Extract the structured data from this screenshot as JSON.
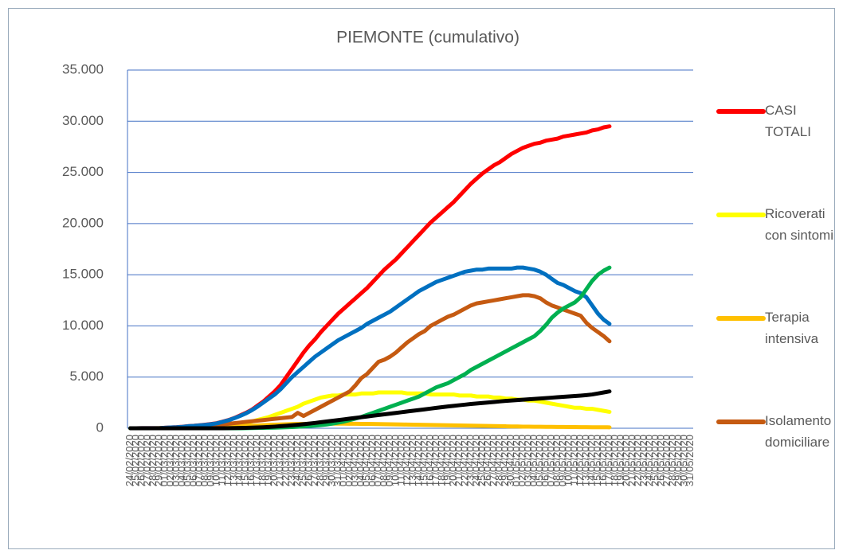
{
  "chart_data": {
    "type": "line",
    "title": "PIEMONTE (cumulativo)",
    "categories": [
      "24/02/2020",
      "25/02/2020",
      "26/02/2020",
      "27/02/2020",
      "28/02/2020",
      "29/02/2020",
      "01/03/2020",
      "02/03/2020",
      "03/03/2020",
      "04/03/2020",
      "05/03/2020",
      "06/03/2020",
      "07/03/2020",
      "08/03/2020",
      "09/03/2020",
      "10/03/2020",
      "11/03/2020",
      "12/03/2020",
      "13/03/2020",
      "14/03/2020",
      "15/03/2020",
      "16/03/2020",
      "17/03/2020",
      "18/03/2020",
      "19/03/2020",
      "20/03/2020",
      "21/03/2020",
      "22/03/2020",
      "23/03/2020",
      "24/03/2020",
      "25/03/2020",
      "26/03/2020",
      "27/03/2020",
      "28/03/2020",
      "29/03/2020",
      "30/03/2020",
      "31/03/2020",
      "01/04/2020",
      "02/04/2020",
      "03/04/2020",
      "04/04/2020",
      "05/04/2020",
      "06/04/2020",
      "07/04/2020",
      "08/04/2020",
      "09/04/2020",
      "10/04/2020",
      "11/04/2020",
      "12/04/2020",
      "13/04/2020",
      "14/04/2020",
      "15/04/2020",
      "16/04/2020",
      "17/04/2020",
      "18/04/2020",
      "19/04/2020",
      "20/04/2020",
      "21/04/2020",
      "22/04/2020",
      "23/04/2020",
      "24/04/2020",
      "25/04/2020",
      "26/04/2020",
      "27/04/2020",
      "28/04/2020",
      "29/04/2020",
      "30/04/2020",
      "01/05/2020",
      "02/05/2020",
      "03/05/2020",
      "04/05/2020",
      "05/05/2020",
      "06/05/2020",
      "07/05/2020",
      "08/05/2020",
      "09/05/2020",
      "10/05/2020",
      "11/05/2020",
      "12/05/2020",
      "13/05/2020",
      "14/05/2020",
      "15/05/2020",
      "16/05/2020",
      "17/05/2020",
      "18/05/2020",
      "19/05/2020",
      "20/05/2020",
      "21/05/2020",
      "22/05/2020",
      "23/05/2020",
      "24/05/2020",
      "25/05/2020",
      "26/05/2020",
      "27/05/2020",
      "28/05/2020",
      "29/05/2020",
      "30/05/2020",
      "31/05/2020"
    ],
    "series": [
      {
        "name": "CASI TOTALI",
        "color": "#ff0000",
        "values": [
          3,
          3,
          6,
          6,
          11,
          11,
          49,
          82,
          105,
          143,
          207,
          243,
          294,
          350,
          420,
          500,
          650,
          800,
          1000,
          1250,
          1500,
          1800,
          2200,
          2600,
          3100,
          3600,
          4200,
          5000,
          5800,
          6600,
          7400,
          8100,
          8700,
          9400,
          10000,
          10600,
          11200,
          11700,
          12200,
          12700,
          13200,
          13700,
          14300,
          14900,
          15500,
          16000,
          16500,
          17100,
          17700,
          18300,
          18900,
          19500,
          20100,
          20600,
          21100,
          21600,
          22100,
          22700,
          23300,
          23900,
          24400,
          24900,
          25300,
          25700,
          26000,
          26400,
          26800,
          27100,
          27400,
          27600,
          27800,
          27900,
          28100,
          28200,
          28300,
          28500,
          28600,
          28700,
          28800,
          28900,
          29100,
          29200,
          29400,
          29500,
          null,
          null,
          null,
          null,
          null,
          null,
          null,
          null,
          null,
          null,
          null,
          null,
          null,
          null
        ]
      },
      {
        "name": "Ricoverati con sintomi",
        "color": "#ffff00",
        "values": [
          0,
          0,
          1,
          2,
          4,
          7,
          10,
          15,
          20,
          30,
          40,
          50,
          70,
          90,
          120,
          150,
          200,
          250,
          330,
          420,
          520,
          650,
          800,
          950,
          1100,
          1300,
          1500,
          1700,
          1900,
          2100,
          2400,
          2600,
          2800,
          3000,
          3100,
          3200,
          3200,
          3300,
          3300,
          3300,
          3400,
          3400,
          3400,
          3500,
          3500,
          3500,
          3500,
          3500,
          3400,
          3400,
          3400,
          3400,
          3300,
          3300,
          3300,
          3300,
          3300,
          3200,
          3200,
          3200,
          3100,
          3100,
          3100,
          3000,
          3000,
          2900,
          2900,
          2800,
          2800,
          2700,
          2700,
          2600,
          2500,
          2400,
          2300,
          2200,
          2100,
          2000,
          2000,
          1900,
          1900,
          1800,
          1700,
          1600,
          null,
          null,
          null,
          null,
          null,
          null,
          null,
          null,
          null,
          null,
          null,
          null,
          null,
          null
        ]
      },
      {
        "name": "Terapia intensiva",
        "color": "#ffc000",
        "values": [
          0,
          0,
          0,
          1,
          2,
          3,
          5,
          7,
          10,
          15,
          20,
          25,
          35,
          45,
          60,
          80,
          100,
          120,
          150,
          180,
          210,
          240,
          270,
          300,
          330,
          350,
          370,
          390,
          410,
          420,
          430,
          440,
          450,
          450,
          450,
          450,
          450,
          450,
          440,
          440,
          430,
          430,
          420,
          410,
          400,
          390,
          380,
          370,
          360,
          350,
          340,
          330,
          320,
          310,
          300,
          290,
          280,
          270,
          260,
          250,
          240,
          230,
          220,
          210,
          200,
          190,
          180,
          170,
          160,
          160,
          150,
          150,
          140,
          140,
          130,
          130,
          120,
          120,
          110,
          110,
          100,
          100,
          100,
          90,
          null,
          null,
          null,
          null,
          null,
          null,
          null,
          null,
          null,
          null,
          null,
          null,
          null,
          null
        ]
      },
      {
        "name": "Isolamento domiciliare",
        "color": "#c55a11",
        "values": [
          0,
          0,
          2,
          2,
          5,
          5,
          30,
          60,
          80,
          110,
          160,
          190,
          220,
          250,
          290,
          330,
          380,
          440,
          500,
          560,
          620,
          680,
          740,
          800,
          860,
          920,
          980,
          1040,
          1100,
          1500,
          1200,
          1500,
          1800,
          2100,
          2400,
          2700,
          3000,
          3300,
          3600,
          4200,
          4900,
          5300,
          5900,
          6500,
          6700,
          7000,
          7400,
          7900,
          8400,
          8800,
          9200,
          9500,
          10000,
          10300,
          10600,
          10900,
          11100,
          11400,
          11700,
          12000,
          12200,
          12300,
          12400,
          12500,
          12600,
          12700,
          12800,
          12900,
          13000,
          13000,
          12900,
          12700,
          12300,
          12000,
          11800,
          11600,
          11400,
          11200,
          11000,
          10300,
          9800,
          9400,
          9000,
          8500,
          null,
          null,
          null,
          null,
          null,
          null,
          null,
          null,
          null,
          null,
          null,
          null,
          null,
          null
        ]
      },
      {
        "color": "#0070c0",
        "values": [
          3,
          3,
          6,
          6,
          11,
          11,
          49,
          80,
          100,
          140,
          200,
          230,
          280,
          330,
          400,
          480,
          630,
          780,
          980,
          1200,
          1450,
          1750,
          2100,
          2500,
          2900,
          3300,
          3800,
          4400,
          5000,
          5500,
          6000,
          6500,
          7000,
          7400,
          7800,
          8200,
          8600,
          8900,
          9200,
          9500,
          9800,
          10200,
          10500,
          10800,
          11100,
          11400,
          11800,
          12200,
          12600,
          13000,
          13400,
          13700,
          14000,
          14300,
          14500,
          14700,
          14900,
          15100,
          15300,
          15400,
          15500,
          15500,
          15600,
          15600,
          15600,
          15600,
          15600,
          15700,
          15700,
          15600,
          15500,
          15300,
          15000,
          14600,
          14200,
          14000,
          13700,
          13400,
          13200,
          12800,
          12000,
          11200,
          10600,
          10200,
          null,
          null,
          null,
          null,
          null,
          null,
          null,
          null,
          null,
          null,
          null,
          null,
          null,
          null
        ]
      },
      {
        "color": "#00b050",
        "values": [
          0,
          0,
          0,
          0,
          0,
          0,
          0,
          0,
          0,
          0,
          0,
          0,
          0,
          0,
          0,
          0,
          0,
          0,
          0,
          0,
          10,
          20,
          30,
          40,
          50,
          60,
          80,
          100,
          120,
          150,
          180,
          220,
          260,
          310,
          370,
          450,
          550,
          650,
          800,
          950,
          1100,
          1300,
          1500,
          1700,
          1900,
          2100,
          2300,
          2500,
          2700,
          2900,
          3100,
          3400,
          3700,
          4000,
          4200,
          4400,
          4700,
          5000,
          5300,
          5700,
          6000,
          6300,
          6600,
          6900,
          7200,
          7500,
          7800,
          8100,
          8400,
          8700,
          9000,
          9500,
          10100,
          10800,
          11300,
          11700,
          12000,
          12300,
          12800,
          13600,
          14400,
          15000,
          15400,
          15700,
          null,
          null,
          null,
          null,
          null,
          null,
          null,
          null,
          null,
          null,
          null,
          null,
          null,
          null
        ]
      },
      {
        "color": "#000000",
        "values": [
          0,
          0,
          0,
          0,
          0,
          0,
          0,
          0,
          0,
          0,
          0,
          0,
          0,
          0,
          0,
          0,
          0,
          10,
          20,
          30,
          40,
          60,
          80,
          100,
          130,
          160,
          200,
          240,
          290,
          340,
          400,
          460,
          520,
          590,
          660,
          730,
          800,
          870,
          940,
          1010,
          1080,
          1150,
          1220,
          1290,
          1360,
          1430,
          1500,
          1570,
          1640,
          1710,
          1780,
          1850,
          1920,
          1990,
          2060,
          2130,
          2190,
          2250,
          2310,
          2370,
          2420,
          2470,
          2520,
          2570,
          2620,
          2670,
          2710,
          2750,
          2790,
          2830,
          2870,
          2910,
          2950,
          2990,
          3030,
          3070,
          3110,
          3150,
          3190,
          3240,
          3300,
          3400,
          3500,
          3600,
          null,
          null,
          null,
          null,
          null,
          null,
          null,
          null,
          null,
          null,
          null,
          null,
          null,
          null
        ]
      }
    ],
    "ylim": [
      0,
      35000
    ],
    "yticks": [
      0,
      {
        "value": 5000,
        "label": "5.000"
      },
      {
        "value": 10000,
        "label": "10.000"
      },
      {
        "value": 15000,
        "label": "15.000"
      },
      {
        "value": 20000,
        "label": "20.000"
      },
      {
        "value": 25000,
        "label": "25.000"
      },
      {
        "value": 30000,
        "label": "30.000"
      },
      {
        "value": 35000,
        "label": "35.000"
      }
    ],
    "grid": true,
    "legend": "right"
  }
}
